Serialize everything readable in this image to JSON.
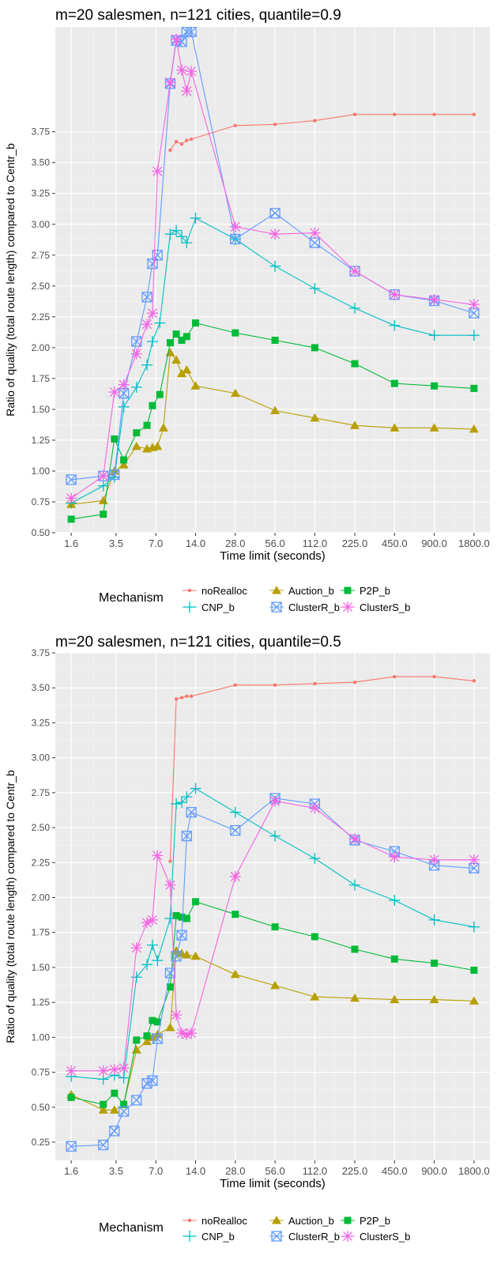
{
  "colors": {
    "panel_bg": "#EBEBEB",
    "grid_major": "#FFFFFF",
    "grid_minor": "#F5F5F5",
    "text": "#000000",
    "tick_text": "#4D4D4D"
  },
  "chart_data": [
    {
      "type": "line",
      "title": "m=20 salesmen, n=121 cities, quantile=0.9",
      "xlabel": "Time limit (seconds)",
      "ylabel": "Ratio of quality (total route length) compared to Centr_b",
      "x_scale": "log2",
      "x_ticks": [
        1.6,
        3.5,
        7.0,
        14.0,
        28.0,
        56.0,
        112.0,
        225.0,
        450.0,
        900.0,
        1800.0
      ],
      "x_tick_labels": [
        "1.6",
        "3.5",
        "7.0",
        "14.0",
        "28.0",
        "56.0",
        "112.0",
        "225.0",
        "450.0",
        "900.0",
        "1800.0"
      ],
      "y_ticks": [
        0.5,
        0.75,
        1.0,
        1.25,
        1.5,
        1.75,
        2.0,
        2.25,
        2.5,
        2.75,
        3.0,
        3.25,
        3.5,
        3.75
      ],
      "y_tick_labels": [
        "0.50",
        "0.75",
        "1.00",
        "1.25",
        "1.50",
        "1.75",
        "2.00",
        "2.25",
        "2.50",
        "2.75",
        "3.00",
        "3.25",
        "3.50",
        "3.75"
      ],
      "ylim": [
        0.5,
        4.6
      ],
      "grid": true,
      "legend": {
        "position": "bottom",
        "title": "Mechanism",
        "items": [
          "noRealloc",
          "Auction_b",
          "P2P_b",
          "CNP_b",
          "ClusterR_b",
          "ClusterS_b"
        ]
      },
      "series": [
        {
          "name": "noRealloc",
          "color": "#F8766D",
          "marker": "dot",
          "x": [
            9.0,
            10.0,
            11.0,
            12.0,
            13.0,
            28.0,
            56.0,
            112.0,
            225.0,
            450.0,
            900.0,
            1800.0
          ],
          "y": [
            3.6,
            3.67,
            3.65,
            3.68,
            3.69,
            3.8,
            3.81,
            3.84,
            3.89,
            3.89,
            3.89,
            3.89
          ]
        },
        {
          "name": "Auction_b",
          "color": "#B79F00",
          "marker": "triangle",
          "x": [
            1.6,
            2.8,
            3.4,
            4.0,
            5.0,
            6.0,
            6.6,
            7.2,
            8.0,
            9.0,
            10.0,
            11.0,
            12.0,
            14.0,
            28.0,
            56.0,
            112.0,
            225.0,
            450.0,
            900.0,
            1800.0
          ],
          "y": [
            0.73,
            0.76,
            1.0,
            1.05,
            1.2,
            1.18,
            1.19,
            1.2,
            1.35,
            1.96,
            1.9,
            1.79,
            1.82,
            1.69,
            1.63,
            1.49,
            1.43,
            1.37,
            1.35,
            1.35,
            1.34
          ]
        },
        {
          "name": "P2P_b",
          "color": "#00BA38",
          "marker": "square",
          "x": [
            1.6,
            2.8,
            3.4,
            4.0,
            5.0,
            6.0,
            6.6,
            7.5,
            9.0,
            10.0,
            11.0,
            12.0,
            14.0,
            28.0,
            56.0,
            112.0,
            225.0,
            450.0,
            900.0,
            1800.0
          ],
          "y": [
            0.61,
            0.65,
            1.26,
            1.09,
            1.31,
            1.37,
            1.53,
            1.62,
            2.04,
            2.11,
            2.06,
            2.09,
            2.2,
            2.12,
            2.06,
            2.0,
            1.87,
            1.71,
            1.69,
            1.67
          ]
        },
        {
          "name": "CNP_b",
          "color": "#00BFC4",
          "marker": "plus",
          "x": [
            1.6,
            2.8,
            3.4,
            4.0,
            5.0,
            6.0,
            6.6,
            7.5,
            9.0,
            10.0,
            11.0,
            12.0,
            14.0,
            28.0,
            56.0,
            112.0,
            225.0,
            450.0,
            900.0,
            1800.0
          ],
          "y": [
            0.74,
            0.88,
            0.95,
            1.52,
            1.68,
            1.86,
            2.05,
            2.2,
            2.92,
            2.95,
            2.9,
            2.85,
            3.05,
            2.88,
            2.66,
            2.48,
            2.32,
            2.18,
            2.1,
            2.1
          ]
        },
        {
          "name": "ClusterR_b",
          "color": "#619CFF",
          "marker": "boxx",
          "x": [
            1.6,
            2.8,
            3.4,
            4.0,
            5.0,
            6.0,
            6.6,
            7.2,
            9.0,
            10.0,
            11.0,
            12.0,
            13.0,
            28.0,
            56.0,
            112.0,
            225.0,
            450.0,
            900.0,
            1800.0
          ],
          "y": [
            0.93,
            0.96,
            0.97,
            1.63,
            2.05,
            2.41,
            2.68,
            2.75,
            4.14,
            4.49,
            4.48,
            4.56,
            4.56,
            2.88,
            3.09,
            2.85,
            2.62,
            2.43,
            2.38,
            2.28
          ]
        },
        {
          "name": "ClusterS_b",
          "color": "#F564E3",
          "marker": "star",
          "x": [
            1.6,
            2.8,
            3.4,
            4.0,
            5.0,
            6.0,
            6.6,
            7.2,
            9.0,
            10.0,
            11.0,
            12.0,
            13.0,
            28.0,
            56.0,
            112.0,
            225.0,
            450.0,
            900.0,
            1800.0
          ],
          "y": [
            0.78,
            0.96,
            1.64,
            1.7,
            1.95,
            2.19,
            2.28,
            3.43,
            4.15,
            4.5,
            4.25,
            4.08,
            4.24,
            2.98,
            2.92,
            2.93,
            2.62,
            2.43,
            2.39,
            2.35
          ]
        }
      ]
    },
    {
      "type": "line",
      "title": "m=20 salesmen, n=121 cities, quantile=0.5",
      "xlabel": "Time limit (seconds)",
      "ylabel": "Ratio of quality (total route length) compared to Centr_b",
      "x_scale": "log2",
      "x_ticks": [
        1.6,
        3.5,
        7.0,
        14.0,
        28.0,
        56.0,
        112.0,
        225.0,
        450.0,
        900.0,
        1800.0
      ],
      "x_tick_labels": [
        "1.6",
        "3.5",
        "7.0",
        "14.0",
        "28.0",
        "56.0",
        "112.0",
        "225.0",
        "450.0",
        "900.0",
        "1800.0"
      ],
      "y_ticks": [
        0.25,
        0.5,
        0.75,
        1.0,
        1.25,
        1.5,
        1.75,
        2.0,
        2.25,
        2.5,
        2.75,
        3.0,
        3.25,
        3.5,
        3.75
      ],
      "y_tick_labels": [
        "0.25",
        "0.50",
        "0.75",
        "1.00",
        "1.25",
        "1.50",
        "1.75",
        "2.00",
        "2.25",
        "2.50",
        "2.75",
        "3.00",
        "3.25",
        "3.50",
        "3.75"
      ],
      "ylim": [
        0.12,
        3.75
      ],
      "grid": true,
      "legend": {
        "position": "bottom",
        "title": "Mechanism",
        "items": [
          "noRealloc",
          "Auction_b",
          "P2P_b",
          "CNP_b",
          "ClusterR_b",
          "ClusterS_b"
        ]
      },
      "series": [
        {
          "name": "noRealloc",
          "color": "#F8766D",
          "marker": "dot",
          "x": [
            9.0,
            10.0,
            11.0,
            12.0,
            13.0,
            28.0,
            56.0,
            112.0,
            225.0,
            450.0,
            900.0,
            1800.0
          ],
          "y": [
            2.26,
            3.42,
            3.43,
            3.44,
            3.44,
            3.52,
            3.52,
            3.53,
            3.54,
            3.58,
            3.58,
            3.55
          ]
        },
        {
          "name": "Auction_b",
          "color": "#B79F00",
          "marker": "triangle",
          "x": [
            1.6,
            2.8,
            3.4,
            4.0,
            5.0,
            6.0,
            6.6,
            7.2,
            9.0,
            10.0,
            11.0,
            12.0,
            14.0,
            28.0,
            56.0,
            112.0,
            225.0,
            450.0,
            900.0,
            1800.0
          ],
          "y": [
            0.59,
            0.48,
            0.48,
            0.52,
            0.91,
            0.97,
            1.0,
            1.02,
            1.07,
            1.62,
            1.6,
            1.59,
            1.58,
            1.45,
            1.37,
            1.29,
            1.28,
            1.27,
            1.27,
            1.26
          ]
        },
        {
          "name": "P2P_b",
          "color": "#00BA38",
          "marker": "square",
          "x": [
            1.6,
            2.8,
            3.4,
            4.0,
            5.0,
            6.0,
            6.6,
            7.2,
            9.0,
            10.0,
            11.0,
            12.0,
            14.0,
            28.0,
            56.0,
            112.0,
            225.0,
            450.0,
            900.0,
            1800.0
          ],
          "y": [
            0.57,
            0.52,
            0.6,
            0.52,
            0.98,
            1.01,
            1.12,
            1.11,
            1.36,
            1.87,
            1.86,
            1.85,
            1.97,
            1.88,
            1.79,
            1.72,
            1.63,
            1.56,
            1.53,
            1.48
          ]
        },
        {
          "name": "CNP_b",
          "color": "#00BFC4",
          "marker": "plus",
          "x": [
            1.6,
            2.8,
            3.4,
            4.0,
            5.0,
            6.0,
            6.6,
            7.2,
            9.0,
            10.0,
            11.0,
            12.0,
            14.0,
            28.0,
            56.0,
            112.0,
            225.0,
            450.0,
            900.0,
            1800.0
          ],
          "y": [
            0.72,
            0.7,
            0.73,
            0.71,
            1.43,
            1.52,
            1.66,
            1.55,
            1.85,
            2.67,
            2.68,
            2.72,
            2.78,
            2.61,
            2.44,
            2.28,
            2.09,
            1.98,
            1.84,
            1.79
          ]
        },
        {
          "name": "ClusterR_b",
          "color": "#619CFF",
          "marker": "boxx",
          "x": [
            1.6,
            2.8,
            3.4,
            4.0,
            5.0,
            6.0,
            6.6,
            7.2,
            9.0,
            10.0,
            11.0,
            12.0,
            13.0,
            28.0,
            56.0,
            112.0,
            225.0,
            450.0,
            900.0,
            1800.0
          ],
          "y": [
            0.22,
            0.23,
            0.33,
            0.47,
            0.55,
            0.67,
            0.69,
            0.99,
            1.46,
            1.58,
            1.73,
            2.44,
            2.61,
            2.48,
            2.71,
            2.67,
            2.41,
            2.33,
            2.23,
            2.21
          ]
        },
        {
          "name": "ClusterS_b",
          "color": "#F564E3",
          "marker": "star",
          "x": [
            1.6,
            2.8,
            3.4,
            4.0,
            5.0,
            6.0,
            6.6,
            7.2,
            9.0,
            10.0,
            11.0,
            12.0,
            13.0,
            28.0,
            56.0,
            112.0,
            225.0,
            450.0,
            900.0,
            1800.0
          ],
          "y": [
            0.76,
            0.76,
            0.77,
            0.78,
            1.64,
            1.82,
            1.84,
            2.3,
            2.09,
            1.16,
            1.03,
            1.02,
            1.03,
            2.15,
            2.69,
            2.64,
            2.42,
            2.29,
            2.27,
            2.27
          ]
        }
      ]
    }
  ]
}
